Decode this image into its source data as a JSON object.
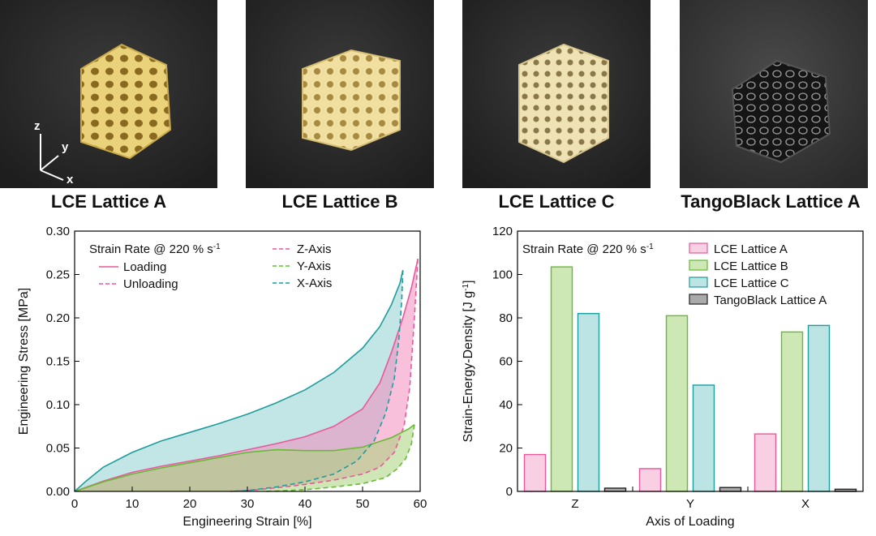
{
  "photos": [
    {
      "caption": "LCE Lattice A",
      "color": "#e9d27a",
      "axes_labels": {
        "z": "z",
        "y": "y",
        "x": "x"
      }
    },
    {
      "caption": "LCE Lattice B",
      "color": "#f0dfa0"
    },
    {
      "caption": "LCE Lattice C",
      "color": "#efe2b4"
    },
    {
      "caption": "TangoBlack Lattice A",
      "color": "#202020"
    }
  ],
  "chart_data": [
    {
      "type": "line",
      "annotation": "Strain Rate @ 220 % s",
      "annotation_sup": "-1",
      "xlabel": "Engineering Strain [%]",
      "ylabel": "Engineering Stress [MPa]",
      "xlim": [
        0,
        60
      ],
      "ylim": [
        0,
        0.3
      ],
      "xticks": [
        0,
        10,
        20,
        30,
        40,
        50,
        60
      ],
      "yticks": [
        "0.00",
        "0.05",
        "0.10",
        "0.15",
        "0.20",
        "0.25",
        "0.30"
      ],
      "legend_style": [
        {
          "label": "Loading",
          "dash": false,
          "color": "#e8599c"
        },
        {
          "label": "Unloading",
          "dash": true,
          "color": "#e8599c"
        }
      ],
      "legend_axes": [
        {
          "label": "Z-Axis",
          "color": "#e8599c"
        },
        {
          "label": "Y-Axis",
          "color": "#66bb33"
        },
        {
          "label": "X-Axis",
          "color": "#1f9c9c"
        }
      ],
      "series": [
        {
          "name": "Z-Axis",
          "color": "#e8599c",
          "fill": "#f48cbd",
          "loading": [
            [
              0,
              0
            ],
            [
              5,
              0.012
            ],
            [
              10,
              0.022
            ],
            [
              15,
              0.029
            ],
            [
              20,
              0.035
            ],
            [
              25,
              0.041
            ],
            [
              30,
              0.048
            ],
            [
              35,
              0.055
            ],
            [
              40,
              0.063
            ],
            [
              45,
              0.075
            ],
            [
              50,
              0.095
            ],
            [
              53,
              0.125
            ],
            [
              55,
              0.16
            ],
            [
              57,
              0.2
            ],
            [
              58.5,
              0.235
            ],
            [
              59.6,
              0.268
            ]
          ],
          "unloading": [
            [
              59.6,
              0.268
            ],
            [
              59,
              0.2
            ],
            [
              58.2,
              0.12
            ],
            [
              57.2,
              0.075
            ],
            [
              55.5,
              0.045
            ],
            [
              53,
              0.028
            ],
            [
              50,
              0.02
            ],
            [
              45,
              0.013
            ],
            [
              40,
              0.008
            ],
            [
              35,
              0.004
            ],
            [
              30,
              0.001
            ],
            [
              27,
              0
            ]
          ]
        },
        {
          "name": "Y-Axis",
          "color": "#66bb33",
          "fill": "#a8d47a",
          "loading": [
            [
              0,
              0
            ],
            [
              5,
              0.011
            ],
            [
              10,
              0.02
            ],
            [
              15,
              0.027
            ],
            [
              20,
              0.033
            ],
            [
              25,
              0.039
            ],
            [
              30,
              0.045
            ],
            [
              35,
              0.048
            ],
            [
              40,
              0.047
            ],
            [
              45,
              0.047
            ],
            [
              50,
              0.051
            ],
            [
              55,
              0.062
            ],
            [
              58,
              0.072
            ],
            [
              59,
              0.077
            ]
          ],
          "unloading": [
            [
              59,
              0.077
            ],
            [
              58.5,
              0.055
            ],
            [
              57.5,
              0.038
            ],
            [
              56,
              0.026
            ],
            [
              54,
              0.016
            ],
            [
              50,
              0.009
            ],
            [
              45,
              0.005
            ],
            [
              40,
              0.002
            ],
            [
              35,
              0.0005
            ],
            [
              33,
              0
            ]
          ]
        },
        {
          "name": "X-Axis",
          "color": "#1f9c9c",
          "fill": "#8fd0d0",
          "loading": [
            [
              0,
              0
            ],
            [
              2,
              0.012
            ],
            [
              5,
              0.028
            ],
            [
              10,
              0.045
            ],
            [
              15,
              0.058
            ],
            [
              20,
              0.068
            ],
            [
              25,
              0.078
            ],
            [
              30,
              0.089
            ],
            [
              35,
              0.102
            ],
            [
              40,
              0.117
            ],
            [
              45,
              0.137
            ],
            [
              50,
              0.165
            ],
            [
              53,
              0.19
            ],
            [
              55,
              0.215
            ],
            [
              56.5,
              0.24
            ],
            [
              57,
              0.255
            ]
          ],
          "unloading": [
            [
              57,
              0.255
            ],
            [
              56.8,
              0.22
            ],
            [
              56.3,
              0.175
            ],
            [
              55.5,
              0.13
            ],
            [
              54,
              0.09
            ],
            [
              52,
              0.058
            ],
            [
              49,
              0.035
            ],
            [
              45,
              0.02
            ],
            [
              40,
              0.011
            ],
            [
              35,
              0.005
            ],
            [
              30,
              0.001
            ],
            [
              27,
              0
            ]
          ]
        }
      ]
    },
    {
      "type": "bar",
      "annotation": "Strain Rate @ 220 % s",
      "annotation_sup": "-1",
      "xlabel": "Axis of Loading",
      "ylabel": "Strain-Energy-Density [J g",
      "ylabel_sup": "-1",
      "ylabel_end": "]",
      "ylim": [
        0,
        120
      ],
      "yticks": [
        "0",
        "20",
        "40",
        "60",
        "80",
        "100",
        "120"
      ],
      "categories": [
        "Z",
        "Y",
        "X"
      ],
      "series": [
        {
          "name": "LCE Lattice A",
          "color": "#e8599c",
          "fill": "#f9d0e3",
          "values": [
            17,
            10.5,
            26.5
          ]
        },
        {
          "name": "LCE Lattice B",
          "color": "#66bb33",
          "fill": "#cde8b4",
          "values": [
            103.5,
            81,
            73.5
          ]
        },
        {
          "name": "LCE Lattice C",
          "color": "#1f9c9c",
          "fill": "#bde4e4",
          "values": [
            82,
            49,
            76.5
          ]
        },
        {
          "name": "TangoBlack Lattice A",
          "color": "#222222",
          "fill": "#aaaaaa",
          "values": [
            1.5,
            1.8,
            1
          ]
        }
      ]
    }
  ]
}
